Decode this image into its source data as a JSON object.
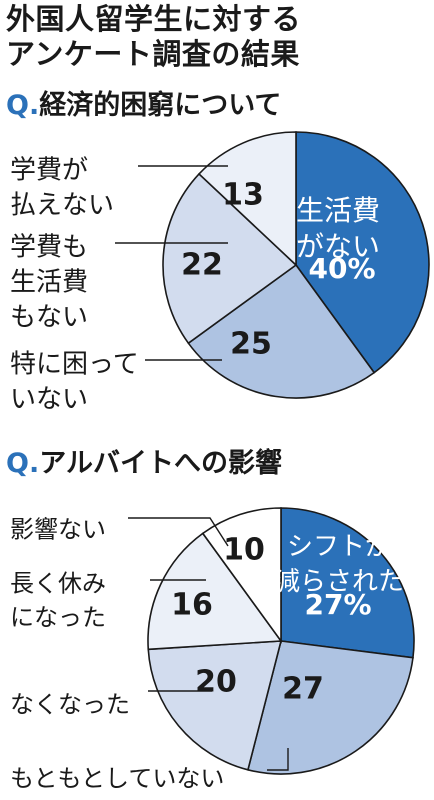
{
  "title": [
    "外国人留学生に対する",
    "アンケート調査の結果"
  ],
  "chart_data": [
    {
      "type": "pie",
      "title_prefix": "Q.",
      "title": "経済的困窮について",
      "unit": "%",
      "slices": [
        {
          "label": [
            "生活費",
            "がない"
          ],
          "value": 40,
          "value_label": "40%",
          "color": "#2b71b9",
          "label_inside": true
        },
        {
          "label": [
            "特に困って",
            "いない"
          ],
          "value": 25,
          "value_label": "25",
          "color": "#aec3e2"
        },
        {
          "label": [
            "学費も",
            "生活費",
            "もない"
          ],
          "value": 22,
          "value_label": "22",
          "color": "#d2dcee"
        },
        {
          "label": [
            "学費が",
            "払えない"
          ],
          "value": 13,
          "value_label": "13",
          "color": "#ebf0f8"
        }
      ]
    },
    {
      "type": "pie",
      "title_prefix": "Q.",
      "title": "アルバイトへの影響",
      "unit": "%",
      "slices": [
        {
          "label": [
            "シフトが",
            "減らされた"
          ],
          "value": 27,
          "value_label": "27%",
          "color": "#2b71b9",
          "label_inside": true
        },
        {
          "label": [
            "もともとしていない"
          ],
          "value": 27,
          "value_label": "27",
          "color": "#aec3e2"
        },
        {
          "label": [
            "なくなった"
          ],
          "value": 20,
          "value_label": "20",
          "color": "#d2dcee"
        },
        {
          "label": [
            "長く休み",
            "になった"
          ],
          "value": 16,
          "value_label": "16",
          "color": "#ebf0f8"
        },
        {
          "label": [
            "影響ない"
          ],
          "value": 10,
          "value_label": "10",
          "color": "#ffffff"
        }
      ]
    }
  ]
}
